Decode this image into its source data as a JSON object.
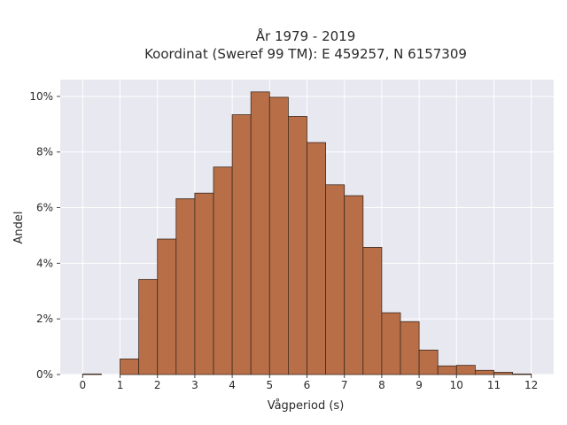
{
  "chart_data": {
    "type": "bar",
    "title": "År 1979 - 2019",
    "subtitle": "Koordinat (Sweref 99 TM): E 459257, N 6157309",
    "xlabel": "Vågperiod (s)",
    "ylabel": "Andel",
    "bin_width": 0.5,
    "bin_start": [
      0,
      0.5,
      1,
      1.5,
      2,
      2.5,
      3,
      3.5,
      4,
      4.5,
      5,
      5.5,
      6,
      6.5,
      7,
      7.5,
      8,
      8.5,
      9,
      9.5,
      10,
      10.5,
      11,
      11.5
    ],
    "values": [
      0.02,
      0.0,
      0.56,
      3.42,
      4.87,
      6.32,
      6.52,
      7.46,
      9.34,
      10.16,
      9.97,
      9.28,
      8.34,
      6.82,
      6.43,
      4.57,
      2.22,
      1.9,
      0.88,
      0.31,
      0.33,
      0.15,
      0.08,
      0.02
    ],
    "xlim": [
      -0.6,
      12.6
    ],
    "ylim": [
      0,
      10.6
    ],
    "x_ticks": [
      0,
      1,
      2,
      3,
      4,
      5,
      6,
      7,
      8,
      9,
      10,
      11,
      12
    ],
    "x_tick_labels": [
      "0",
      "1",
      "2",
      "3",
      "4",
      "5",
      "6",
      "7",
      "8",
      "9",
      "10",
      "11",
      "12"
    ],
    "y_ticks": [
      0,
      2,
      4,
      6,
      8,
      10
    ],
    "y_tick_labels": [
      "0%",
      "2%",
      "4%",
      "6%",
      "8%",
      "10%"
    ],
    "grid": true,
    "colors": {
      "bar_fill": "#b86f47",
      "bar_stroke": "#3d2a1f",
      "plot_background": "#e8e8f0",
      "grid": "#ffffff"
    }
  }
}
